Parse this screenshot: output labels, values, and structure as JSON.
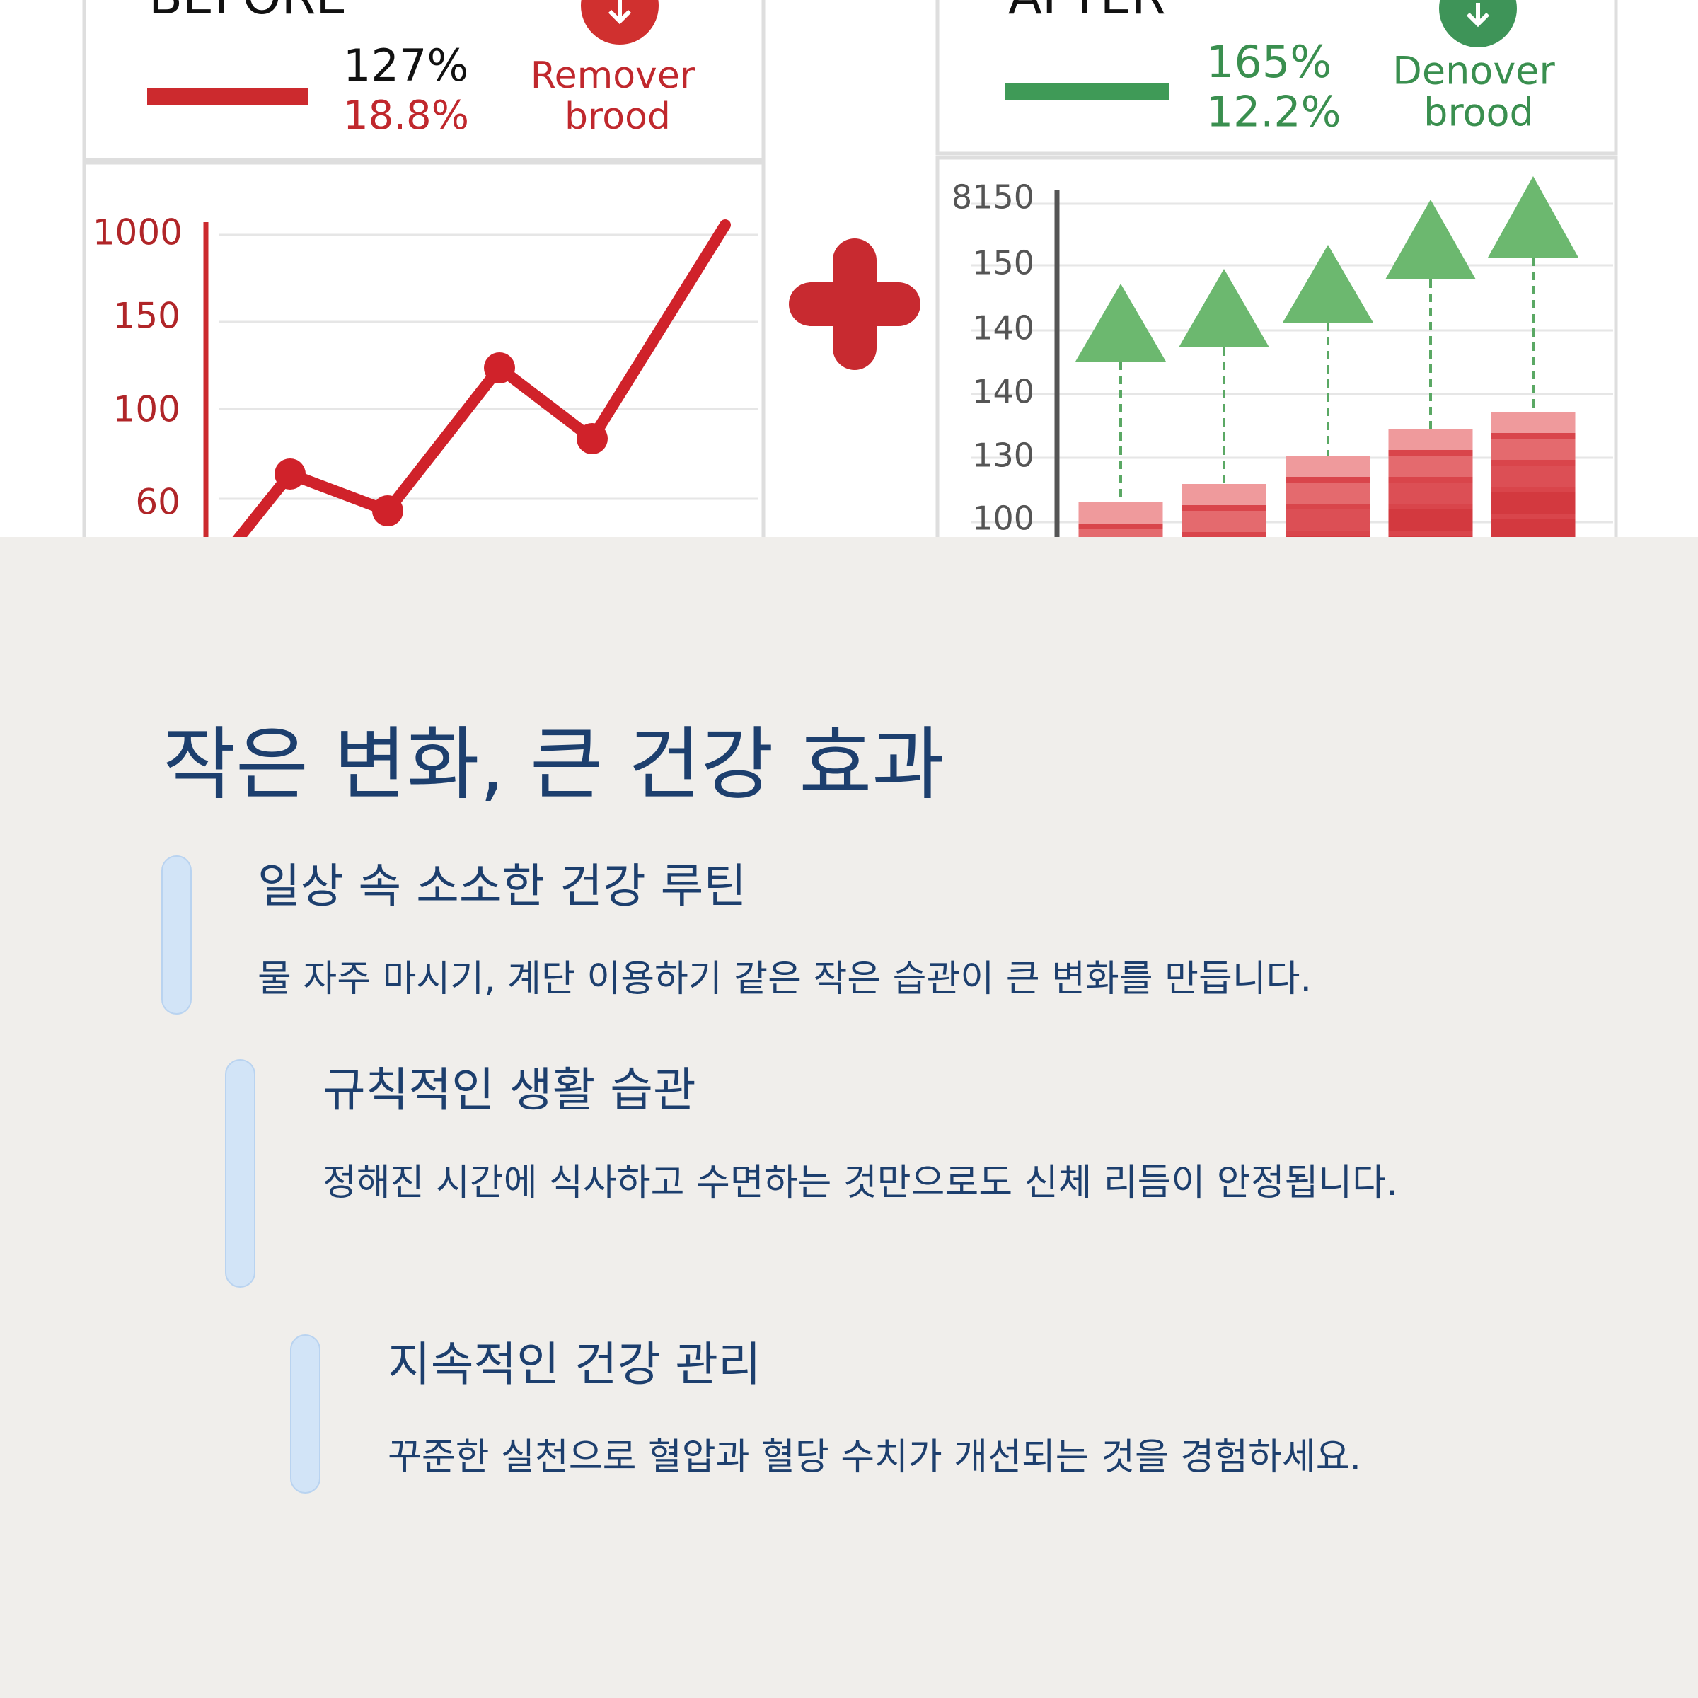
{
  "illustration": {
    "before": {
      "title": "BEFORE",
      "figures": [
        "127%",
        "18.8%"
      ],
      "label": [
        "Remover",
        "brood"
      ],
      "axis": [
        "1000",
        "150",
        "100",
        "60"
      ]
    },
    "after": {
      "title": "AFTER",
      "figures": [
        "165%",
        "12.2%"
      ],
      "label": [
        "Denover",
        "brood"
      ],
      "axis": [
        "8150",
        "150",
        "140",
        "140",
        "130",
        "100"
      ]
    }
  },
  "heading": "작은 변화, 큰 건강 효과",
  "items": [
    {
      "title": "일상 속 소소한 건강 루틴",
      "body": "물 자주 마시기, 계단 이용하기 같은 작은 습관이 큰 변화를 만듭니다."
    },
    {
      "title": "규칙적인 생활 습관",
      "body": "정해진 시간에 식사하고 수면하는 것만으로도 신체 리듬이 안정됩니다."
    },
    {
      "title": "지속적인 건강 관리",
      "body": "꾸준한 실천으로 혈압과 혈당 수치가 개선되는 것을 경험하세요."
    }
  ]
}
